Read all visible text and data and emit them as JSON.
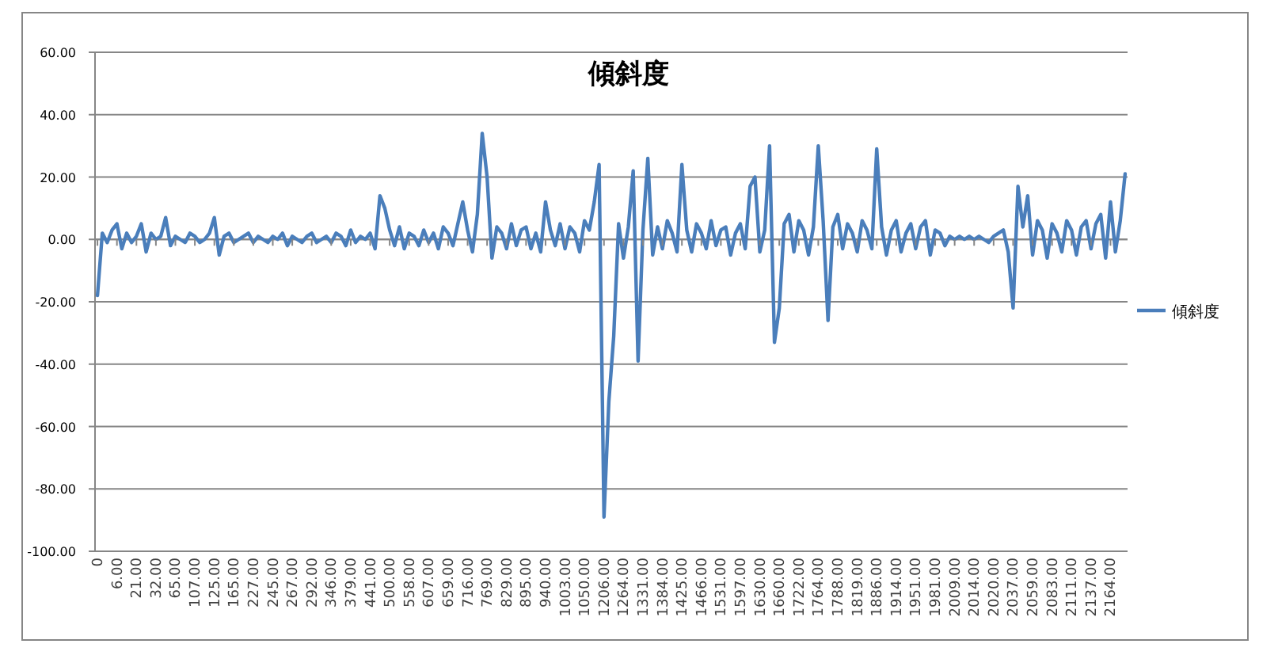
{
  "chart_data": {
    "type": "line",
    "title": "傾斜度",
    "categories": [
      "0",
      null,
      null,
      null,
      "6.00",
      null,
      null,
      null,
      "21.00",
      null,
      null,
      null,
      "32.00",
      null,
      null,
      null,
      "65.00",
      null,
      null,
      null,
      "107.00",
      null,
      null,
      null,
      "125.00",
      null,
      null,
      null,
      "165.00",
      null,
      null,
      null,
      "227.00",
      null,
      null,
      null,
      "245.00",
      null,
      null,
      null,
      "267.00",
      null,
      null,
      null,
      "292.00",
      null,
      null,
      null,
      "346.00",
      null,
      null,
      null,
      "379.00",
      null,
      null,
      null,
      "441.00",
      null,
      null,
      null,
      "500.00",
      null,
      null,
      null,
      "558.00",
      null,
      null,
      null,
      "607.00",
      null,
      null,
      null,
      "659.00",
      null,
      null,
      null,
      "716.00",
      null,
      null,
      null,
      "769.00",
      null,
      null,
      null,
      "829.00",
      null,
      null,
      null,
      "895.00",
      null,
      null,
      null,
      "940.00",
      null,
      null,
      null,
      "1003.00",
      null,
      null,
      null,
      "1050.00",
      null,
      null,
      null,
      "1206.00",
      null,
      null,
      null,
      "1264.00",
      null,
      null,
      null,
      "1331.00",
      null,
      null,
      null,
      "1384.00",
      null,
      null,
      null,
      "1425.00",
      null,
      null,
      null,
      "1466.00",
      null,
      null,
      null,
      "1531.00",
      null,
      null,
      null,
      "1597.00",
      null,
      null,
      null,
      "1630.00",
      null,
      null,
      null,
      "1660.00",
      null,
      null,
      null,
      "1722.00",
      null,
      null,
      null,
      "1764.00",
      null,
      null,
      null,
      "1788.00",
      null,
      null,
      null,
      "1819.00",
      null,
      null,
      null,
      "1886.00",
      null,
      null,
      null,
      "1914.00",
      null,
      null,
      null,
      "1951.00",
      null,
      null,
      null,
      "1981.00",
      null,
      null,
      null,
      "2009.00",
      null,
      null,
      null,
      "2014.00",
      null,
      null,
      null,
      "2020.00",
      null,
      null,
      null,
      "2037.00",
      null,
      null,
      null,
      "2059.00",
      null,
      null,
      null,
      "2083.00",
      null,
      null,
      null,
      "2111.00",
      null,
      null,
      null,
      "2137.00",
      null,
      null,
      null,
      "2164.00",
      null,
      null,
      null
    ],
    "series": [
      {
        "name": "傾斜度",
        "color": "#4a7ebb",
        "values": [
          -18,
          2,
          -1,
          3,
          5,
          -3,
          2,
          -1,
          1,
          5,
          -4,
          2,
          0,
          1,
          7,
          -2,
          1,
          0,
          -1,
          2,
          1,
          -1,
          0,
          2,
          7,
          -5,
          1,
          2,
          -1,
          0,
          1,
          2,
          -1,
          1,
          0,
          -1,
          1,
          0,
          2,
          -2,
          1,
          0,
          -1,
          1,
          2,
          -1,
          0,
          1,
          -1,
          2,
          1,
          -2,
          3,
          -1,
          1,
          0,
          2,
          -3,
          14,
          10,
          3,
          -2,
          4,
          -3,
          2,
          1,
          -2,
          3,
          -1,
          2,
          -3,
          4,
          2,
          -2,
          5,
          12,
          3,
          -4,
          8,
          34,
          20,
          -6,
          4,
          2,
          -3,
          5,
          -2,
          3,
          4,
          -3,
          2,
          -4,
          12,
          3,
          -2,
          5,
          -3,
          4,
          2,
          -4,
          6,
          3,
          12,
          24,
          -89,
          -52,
          -31,
          5,
          -6,
          4,
          22,
          -39,
          3,
          26,
          -5,
          4,
          -3,
          6,
          2,
          -4,
          24,
          3,
          -4,
          5,
          2,
          -3,
          6,
          -2,
          3,
          4,
          -5,
          2,
          5,
          -3,
          17,
          20,
          -4,
          3,
          30,
          -33,
          -22,
          5,
          8,
          -4,
          6,
          3,
          -5,
          4,
          30,
          6,
          -26,
          4,
          8,
          -3,
          5,
          2,
          -4,
          6,
          3,
          -3,
          29,
          4,
          -5,
          3,
          6,
          -4,
          2,
          5,
          -3,
          4,
          6,
          -5,
          3,
          2,
          -2,
          1,
          0,
          1,
          0,
          1,
          0,
          1,
          0,
          -1,
          1,
          2,
          3,
          -4,
          -22,
          17,
          4,
          14,
          -5,
          6,
          3,
          -6,
          5,
          2,
          -4,
          6,
          3,
          -5,
          4,
          6,
          -3,
          5,
          8,
          -6,
          12,
          -4,
          6,
          21
        ]
      }
    ],
    "ylim": [
      -100,
      60
    ],
    "yticks": [
      {
        "value": -100,
        "label": "-100.00"
      },
      {
        "value": -80,
        "label": "-80.00"
      },
      {
        "value": -60,
        "label": "-60.00"
      },
      {
        "value": -40,
        "label": "-40.00"
      },
      {
        "value": -20,
        "label": "-20.00"
      },
      {
        "value": 0,
        "label": "0.00"
      },
      {
        "value": 20,
        "label": "20.00"
      },
      {
        "value": 40,
        "label": "40.00"
      },
      {
        "value": 60,
        "label": "60.00"
      }
    ],
    "grid": "y",
    "legend": "right"
  }
}
